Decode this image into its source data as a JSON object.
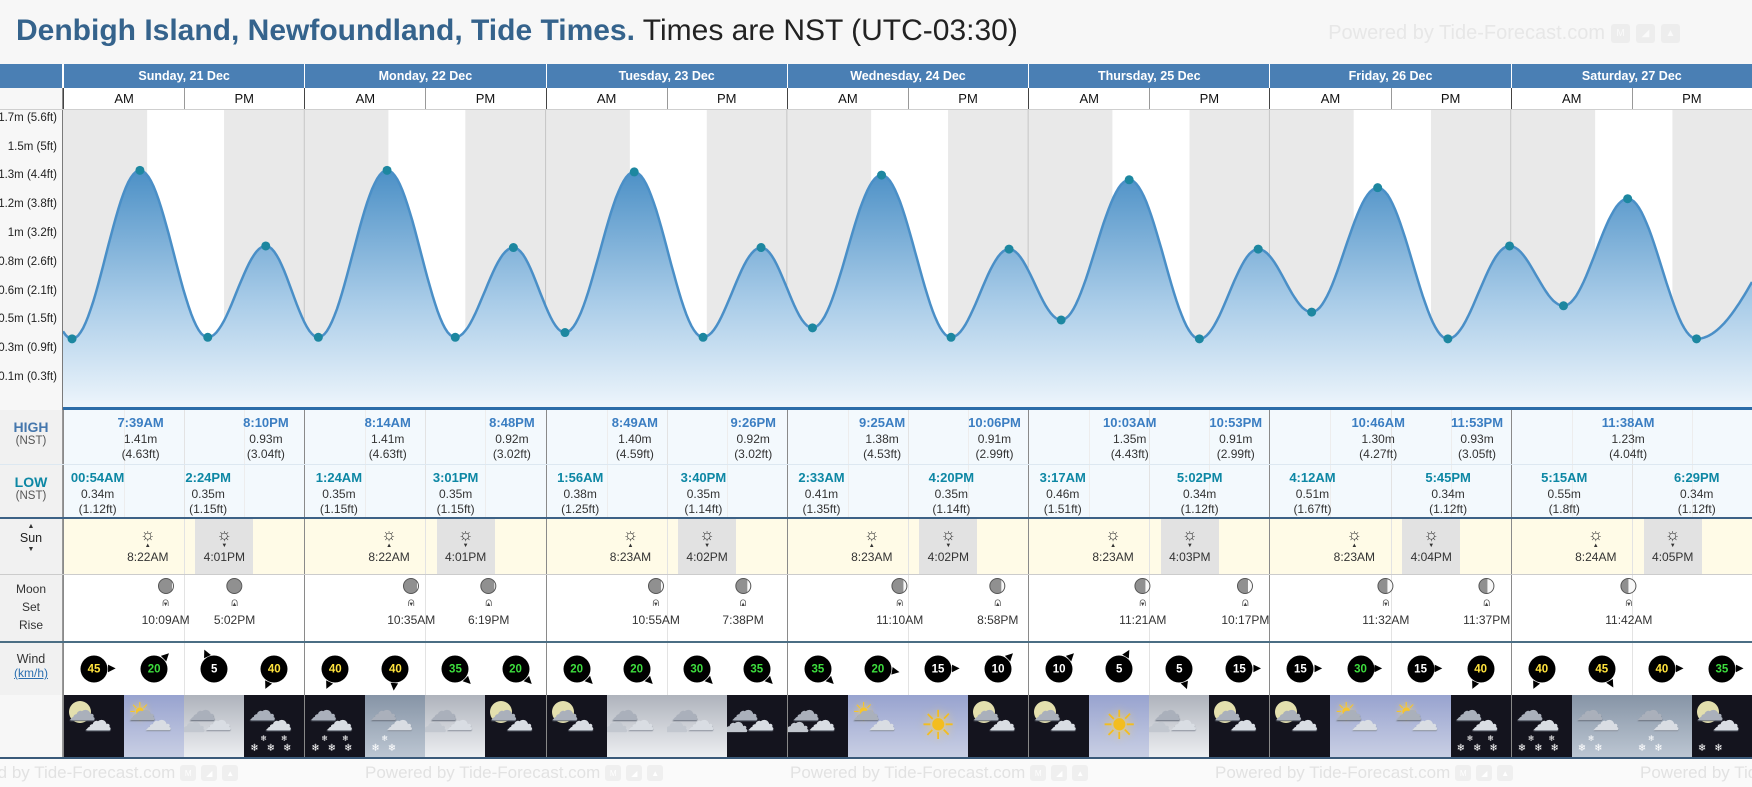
{
  "title": {
    "main": "Denbigh Island, Newfoundland, Tide Times.",
    "suffix": " Times are NST (UTC-03:30)",
    "powered_by": "Powered by Tide-Forecast.com"
  },
  "header": {
    "am": "AM",
    "pm": "PM"
  },
  "row_labels": {
    "high_main": "HIGH",
    "high_sub": "(NST)",
    "low_main": "LOW",
    "low_sub": "(NST)",
    "sun": "Sun",
    "moon_lines": [
      "Moon",
      "Set",
      "Rise"
    ],
    "wind_main": "Wind",
    "wind_unit": "(km/h)"
  },
  "chart": {
    "night_band_color": "#e9e9e9",
    "curve_stroke": "#4a8fc7",
    "dot_color": "#1d87a0",
    "y_axis_labels": [
      {
        "text": "0.1m (0.3ft)",
        "ftv": 0.3
      },
      {
        "text": "0.3m (0.9ft)",
        "ftv": 0.9
      },
      {
        "text": "0.5m (1.5ft)",
        "ftv": 1.5
      },
      {
        "text": "0.6m (2.1ft)",
        "ftv": 2.1
      },
      {
        "text": "0.8m (2.6ft)",
        "ftv": 2.7
      },
      {
        "text": "1m (3.2ft)",
        "ftv": 3.3
      },
      {
        "text": "1.2m (3.8ft)",
        "ftv": 3.9
      },
      {
        "text": "1.3m (4.4ft)",
        "ftv": 4.5
      },
      {
        "text": "1.5m (5ft)",
        "ftv": 5.1
      },
      {
        "text": "1.7m (5.6ft)",
        "ftv": 5.7
      }
    ]
  },
  "chart_data": {
    "type": "area-line",
    "x": "time over 7 days (NST)",
    "y": "tide height (m / ft)",
    "note": "extremes listed per day under days[].tides"
  },
  "wind_colors": {
    "strong": "#ffe33d",
    "medium": "#3ddc3d",
    "light": "#ffffff"
  },
  "days": [
    {
      "label": "Sunday, 21 Dec",
      "sunrise": {
        "time": "8:22AM",
        "hour": 8.367
      },
      "sunset": {
        "time": "4:01PM",
        "hour": 16.017
      },
      "tides": [
        {
          "type": "low",
          "time": "00:54AM",
          "hour": 0.9,
          "height_m": 0.34,
          "m_label": "0.34m",
          "ft_label": "(1.12ft)"
        },
        {
          "type": "high",
          "time": "7:39AM",
          "hour": 7.65,
          "height_m": 1.41,
          "m_label": "1.41m",
          "ft_label": "(4.63ft)"
        },
        {
          "type": "low",
          "time": "2:24PM",
          "hour": 14.4,
          "height_m": 0.35,
          "m_label": "0.35m",
          "ft_label": "(1.15ft)"
        },
        {
          "type": "high",
          "time": "8:10PM",
          "hour": 20.167,
          "height_m": 0.93,
          "m_label": "0.93m",
          "ft_label": "(3.04ft)"
        }
      ],
      "moon": {
        "phase": 0.04,
        "events": [
          {
            "type": "set",
            "time": "10:09AM",
            "hour": 10.15
          },
          {
            "type": "rise",
            "time": "5:02PM",
            "hour": 17.033
          }
        ]
      },
      "wind": [
        {
          "speed": 45,
          "dir": 0
        },
        {
          "speed": 20,
          "dir": -45
        },
        {
          "speed": 5,
          "dir": -115
        },
        {
          "speed": 40,
          "dir": 115
        }
      ],
      "weather": [
        "night-cloud",
        "day-sun-cloud",
        "cloudy",
        "night-snow"
      ]
    },
    {
      "label": "Monday, 22 Dec",
      "sunrise": {
        "time": "8:22AM",
        "hour": 8.367
      },
      "sunset": {
        "time": "4:01PM",
        "hour": 16.017
      },
      "tides": [
        {
          "type": "low",
          "time": "1:24AM",
          "hour": 1.4,
          "height_m": 0.35,
          "m_label": "0.35m",
          "ft_label": "(1.15ft)"
        },
        {
          "type": "high",
          "time": "8:14AM",
          "hour": 8.233,
          "height_m": 1.41,
          "m_label": "1.41m",
          "ft_label": "(4.63ft)"
        },
        {
          "type": "low",
          "time": "3:01PM",
          "hour": 15.017,
          "height_m": 0.35,
          "m_label": "0.35m",
          "ft_label": "(1.15ft)"
        },
        {
          "type": "high",
          "time": "8:48PM",
          "hour": 20.8,
          "height_m": 0.92,
          "m_label": "0.92m",
          "ft_label": "(3.02ft)"
        }
      ],
      "moon": {
        "phase": 0.1,
        "events": [
          {
            "type": "set",
            "time": "10:35AM",
            "hour": 10.583
          },
          {
            "type": "rise",
            "time": "6:19PM",
            "hour": 18.317
          }
        ]
      },
      "wind": [
        {
          "speed": 40,
          "dir": 115
        },
        {
          "speed": 40,
          "dir": 95
        },
        {
          "speed": 35,
          "dir": 45
        },
        {
          "speed": 20,
          "dir": 45
        }
      ],
      "weather": [
        "night-snow",
        "day-snow",
        "cloudy",
        "night-cloud"
      ]
    },
    {
      "label": "Tuesday, 23 Dec",
      "sunrise": {
        "time": "8:23AM",
        "hour": 8.383
      },
      "sunset": {
        "time": "4:02PM",
        "hour": 16.033
      },
      "tides": [
        {
          "type": "low",
          "time": "1:56AM",
          "hour": 1.933,
          "height_m": 0.38,
          "m_label": "0.38m",
          "ft_label": "(1.25ft)"
        },
        {
          "type": "high",
          "time": "8:49AM",
          "hour": 8.817,
          "height_m": 1.4,
          "m_label": "1.40m",
          "ft_label": "(4.59ft)"
        },
        {
          "type": "low",
          "time": "3:40PM",
          "hour": 15.667,
          "height_m": 0.35,
          "m_label": "0.35m",
          "ft_label": "(1.14ft)"
        },
        {
          "type": "high",
          "time": "9:26PM",
          "hour": 21.433,
          "height_m": 0.92,
          "m_label": "0.92m",
          "ft_label": "(3.02ft)"
        }
      ],
      "moon": {
        "phase": 0.17,
        "events": [
          {
            "type": "set",
            "time": "10:55AM",
            "hour": 10.917
          },
          {
            "type": "rise",
            "time": "7:38PM",
            "hour": 19.633
          }
        ]
      },
      "wind": [
        {
          "speed": 20,
          "dir": 45
        },
        {
          "speed": 20,
          "dir": 45
        },
        {
          "speed": 30,
          "dir": 45
        },
        {
          "speed": 35,
          "dir": 45
        }
      ],
      "weather": [
        "night-cloud",
        "cloudy",
        "cloudy",
        "night-cloudy"
      ]
    },
    {
      "label": "Wednesday, 24 Dec",
      "sunrise": {
        "time": "8:23AM",
        "hour": 8.383
      },
      "sunset": {
        "time": "4:02PM",
        "hour": 16.033
      },
      "tides": [
        {
          "type": "low",
          "time": "2:33AM",
          "hour": 2.55,
          "height_m": 0.41,
          "m_label": "0.41m",
          "ft_label": "(1.35ft)"
        },
        {
          "type": "high",
          "time": "9:25AM",
          "hour": 9.417,
          "height_m": 1.38,
          "m_label": "1.38m",
          "ft_label": "(4.53ft)"
        },
        {
          "type": "low",
          "time": "4:20PM",
          "hour": 16.333,
          "height_m": 0.35,
          "m_label": "0.35m",
          "ft_label": "(1.14ft)"
        },
        {
          "type": "high",
          "time": "10:06PM",
          "hour": 22.1,
          "height_m": 0.91,
          "m_label": "0.91m",
          "ft_label": "(2.99ft)"
        }
      ],
      "moon": {
        "phase": 0.25,
        "events": [
          {
            "type": "set",
            "time": "11:10AM",
            "hour": 11.167
          },
          {
            "type": "rise",
            "time": "8:58PM",
            "hour": 20.967
          }
        ]
      },
      "wind": [
        {
          "speed": 35,
          "dir": 45
        },
        {
          "speed": 20,
          "dir": 10
        },
        {
          "speed": 15,
          "dir": 0
        },
        {
          "speed": 10,
          "dir": -45
        }
      ],
      "weather": [
        "night-cloudy",
        "day-sun-cloud",
        "day-sunny",
        "night-cloud"
      ]
    },
    {
      "label": "Thursday, 25 Dec",
      "sunrise": {
        "time": "8:23AM",
        "hour": 8.383
      },
      "sunset": {
        "time": "4:03PM",
        "hour": 16.05
      },
      "tides": [
        {
          "type": "low",
          "time": "3:17AM",
          "hour": 3.283,
          "height_m": 0.46,
          "m_label": "0.46m",
          "ft_label": "(1.51ft)"
        },
        {
          "type": "high",
          "time": "10:03AM",
          "hour": 10.05,
          "height_m": 1.35,
          "m_label": "1.35m",
          "ft_label": "(4.43ft)"
        },
        {
          "type": "low",
          "time": "5:02PM",
          "hour": 17.033,
          "height_m": 0.34,
          "m_label": "0.34m",
          "ft_label": "(1.12ft)"
        },
        {
          "type": "high",
          "time": "10:53PM",
          "hour": 22.883,
          "height_m": 0.91,
          "m_label": "0.91m",
          "ft_label": "(2.99ft)"
        }
      ],
      "moon": {
        "phase": 0.33,
        "events": [
          {
            "type": "set",
            "time": "11:21AM",
            "hour": 11.35
          },
          {
            "type": "rise",
            "time": "10:17PM",
            "hour": 22.283
          }
        ]
      },
      "wind": [
        {
          "speed": 10,
          "dir": -45
        },
        {
          "speed": 5,
          "dir": -60
        },
        {
          "speed": 5,
          "dir": 70
        },
        {
          "speed": 15,
          "dir": 0
        }
      ],
      "weather": [
        "night-cloud",
        "day-sunny",
        "cloudy",
        "night-cloud"
      ]
    },
    {
      "label": "Friday, 26 Dec",
      "sunrise": {
        "time": "8:23AM",
        "hour": 8.383
      },
      "sunset": {
        "time": "4:04PM",
        "hour": 16.067
      },
      "tides": [
        {
          "type": "low",
          "time": "4:12AM",
          "hour": 4.2,
          "height_m": 0.51,
          "m_label": "0.51m",
          "ft_label": "(1.67ft)"
        },
        {
          "type": "high",
          "time": "10:46AM",
          "hour": 10.767,
          "height_m": 1.3,
          "m_label": "1.30m",
          "ft_label": "(4.27ft)"
        },
        {
          "type": "low",
          "time": "5:45PM",
          "hour": 17.75,
          "height_m": 0.34,
          "m_label": "0.34m",
          "ft_label": "(1.12ft)"
        },
        {
          "type": "high",
          "time": "11:53PM",
          "hour": 23.883,
          "height_m": 0.93,
          "m_label": "0.93m",
          "ft_label": "(3.05ft)"
        }
      ],
      "moon": {
        "phase": 0.42,
        "events": [
          {
            "type": "set",
            "time": "11:32AM",
            "hour": 11.533
          },
          {
            "type": "rise",
            "time": "11:37PM",
            "hour": 23.617
          }
        ]
      },
      "wind": [
        {
          "speed": 15,
          "dir": 0
        },
        {
          "speed": 30,
          "dir": 0
        },
        {
          "speed": 15,
          "dir": 0
        },
        {
          "speed": 40,
          "dir": 115
        }
      ],
      "weather": [
        "night-cloud",
        "day-sun-cloud",
        "day-sun-cloud",
        "night-snow"
      ]
    },
    {
      "label": "Saturday, 27 Dec",
      "sunrise": {
        "time": "8:24AM",
        "hour": 8.4
      },
      "sunset": {
        "time": "4:05PM",
        "hour": 16.083
      },
      "tides": [
        {
          "type": "low",
          "time": "5:15AM",
          "hour": 5.25,
          "height_m": 0.55,
          "m_label": "0.55m",
          "ft_label": "(1.8ft)"
        },
        {
          "type": "high",
          "time": "11:38AM",
          "hour": 11.633,
          "height_m": 1.23,
          "m_label": "1.23m",
          "ft_label": "(4.04ft)"
        },
        {
          "type": "low",
          "time": "6:29PM",
          "hour": 18.483,
          "height_m": 0.34,
          "m_label": "0.34m",
          "ft_label": "(1.12ft)"
        }
      ],
      "moon": {
        "phase": 0.5,
        "events": [
          {
            "type": "set",
            "time": "11:42AM",
            "hour": 11.7
          }
        ]
      },
      "wind": [
        {
          "speed": 40,
          "dir": 115
        },
        {
          "speed": 45,
          "dir": 60
        },
        {
          "speed": 40,
          "dir": 0
        },
        {
          "speed": 35,
          "dir": 0
        }
      ],
      "weather": [
        "night-snow",
        "day-snow",
        "day-snow",
        "night-snow-moon"
      ]
    }
  ],
  "footer": {
    "powered_by": "Powered by Tide-Forecast.com"
  }
}
